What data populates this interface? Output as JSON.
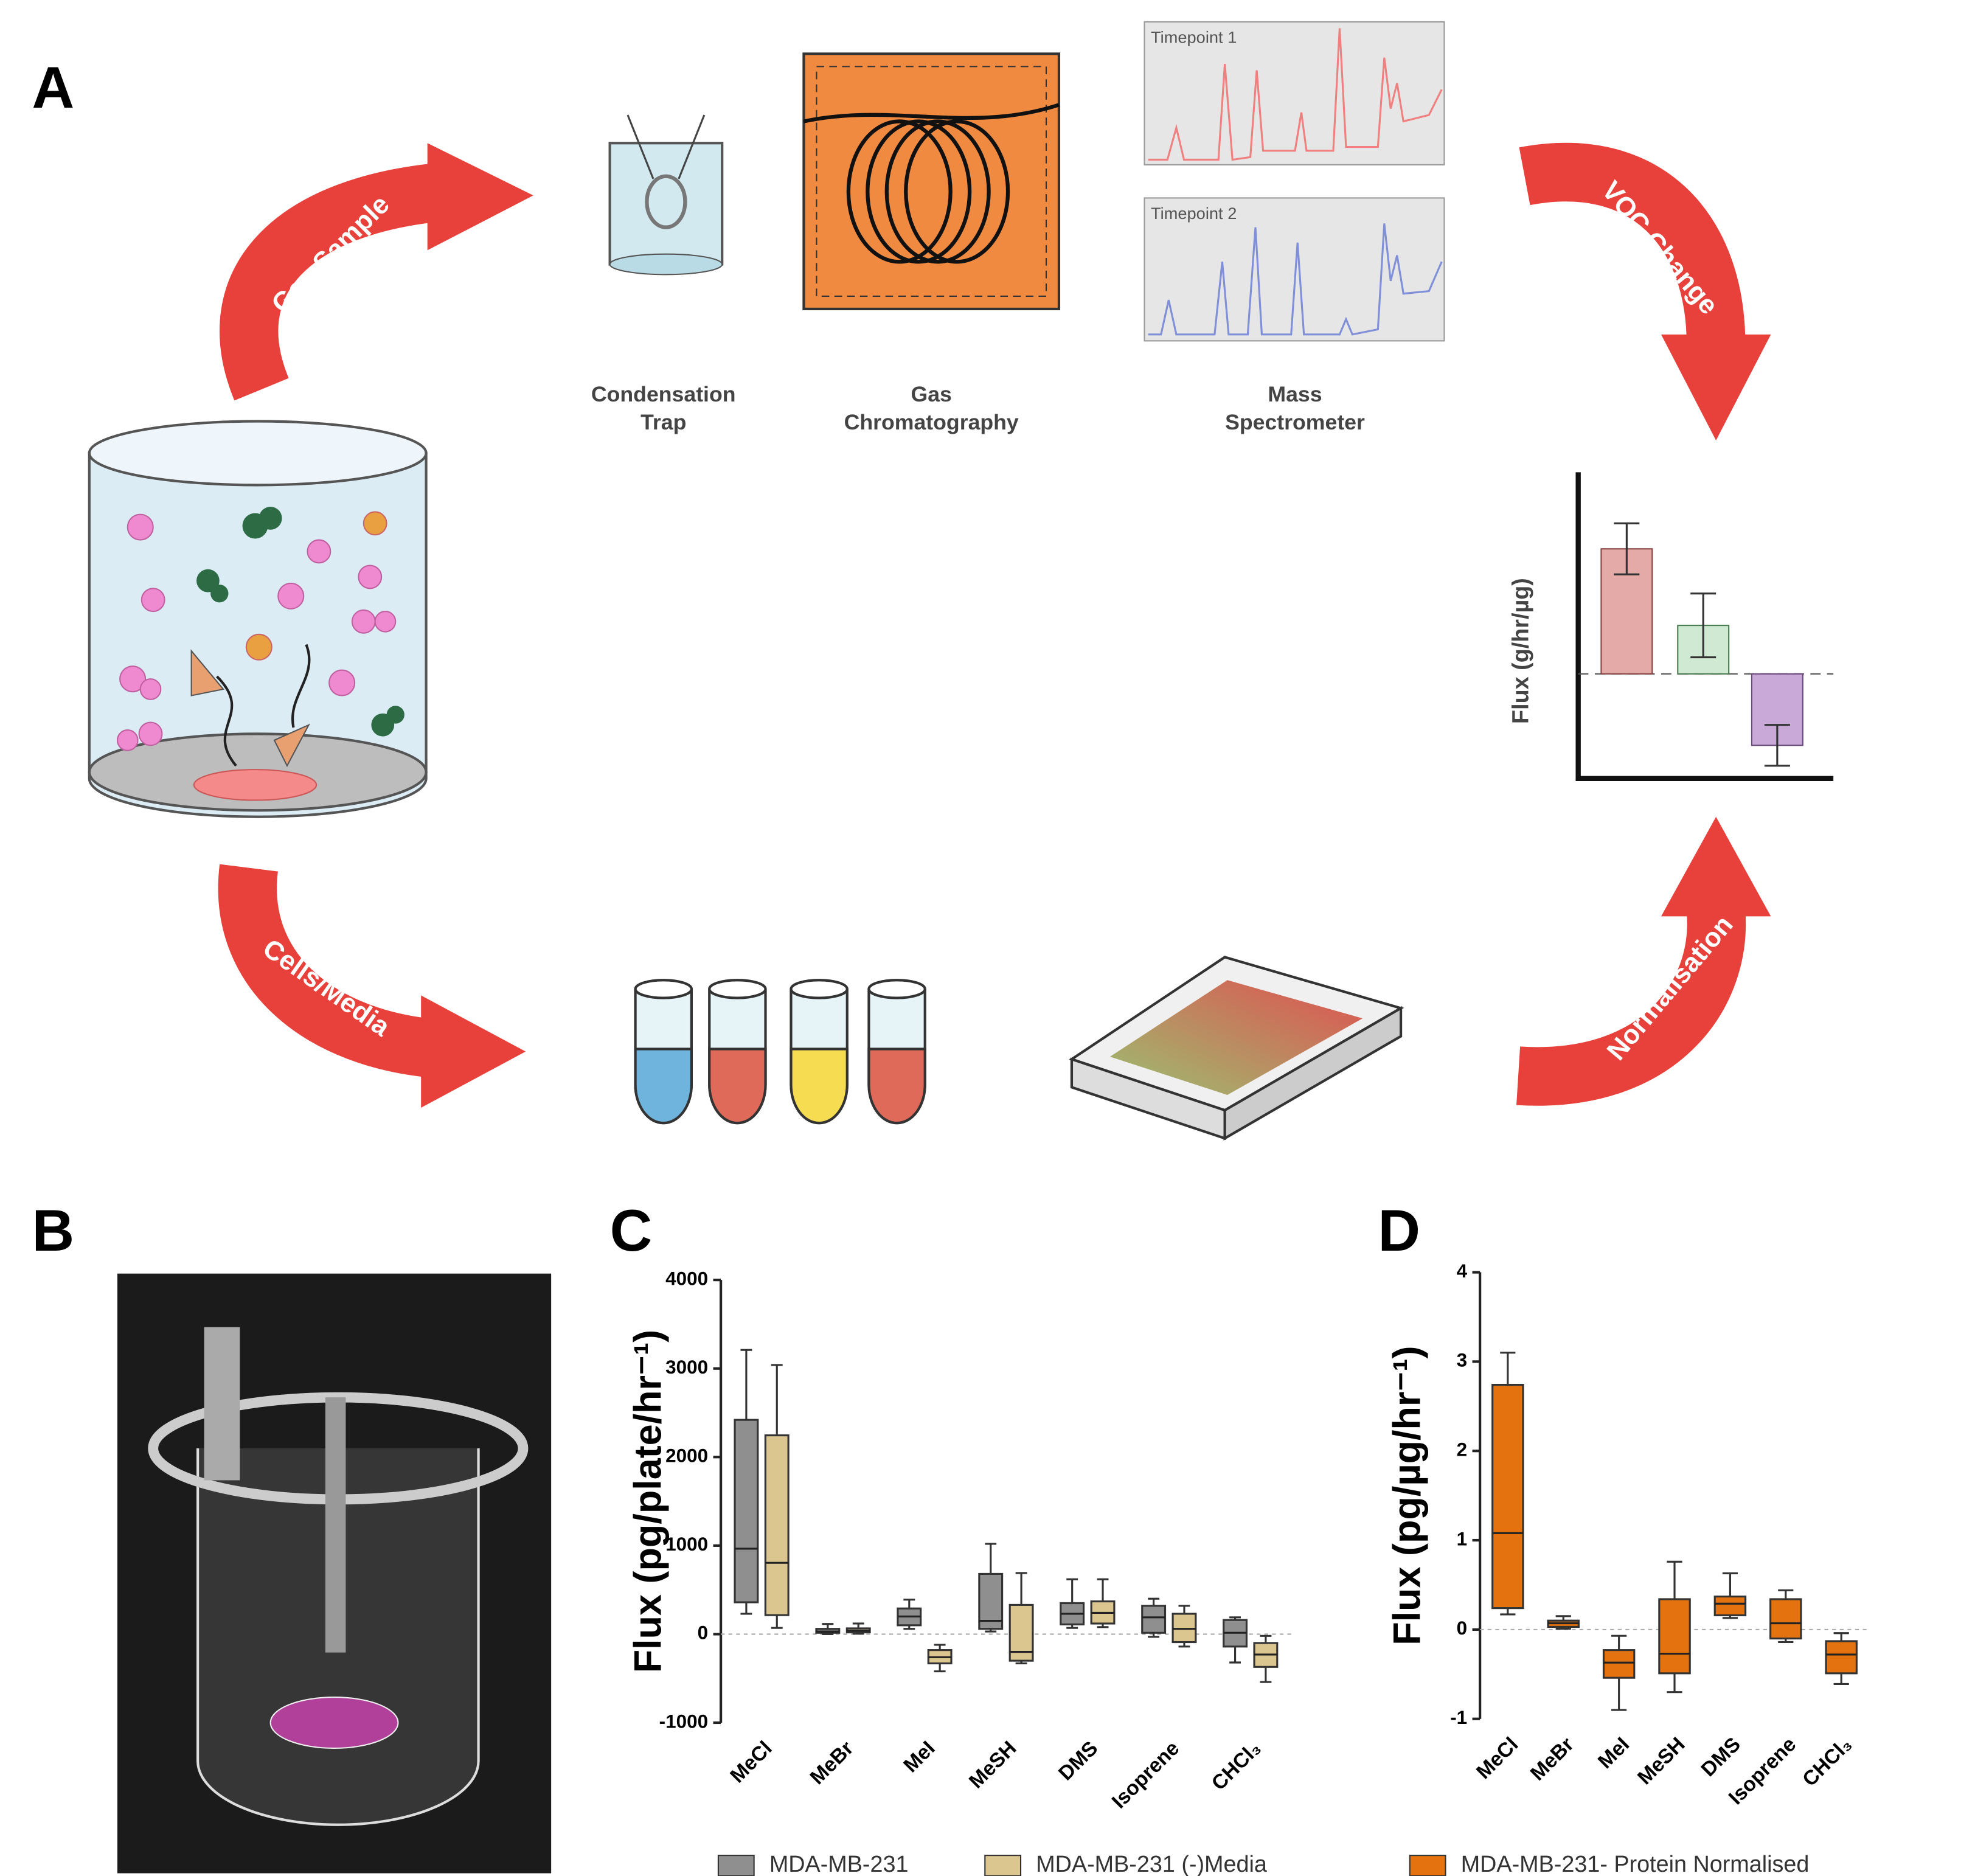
{
  "figure": {
    "panel_labels": [
      "A",
      "B",
      "C",
      "D"
    ],
    "arrows": [
      "Gas Sample",
      "VOC Change",
      "Cells/Media",
      "Normalisation"
    ],
    "instruments": [
      [
        "Condensation",
        "Trap"
      ],
      [
        "Gas",
        "Chromatography"
      ],
      [
        "Mass",
        "Spectrometer"
      ]
    ],
    "timepoints": [
      "Timepoint 1",
      "Timepoint 2"
    ],
    "schematic_ylabel": "Flux (g/hr/µg)"
  },
  "chart_data": [
    {
      "type": "box",
      "ylabel": "Flux (pg/plate/hr⁻¹)",
      "categories": [
        "MeCl",
        "MeBr",
        "MeI",
        "MeSH",
        "DMS",
        "Isoprene",
        "CHCl₃"
      ],
      "ylim": [
        -1000,
        4000
      ],
      "yticks": [
        -1000,
        0,
        1000,
        2000,
        3000,
        4000
      ],
      "series": [
        {
          "name": "MDA-MB-231",
          "color": "#8f8f8f",
          "values": [
            [
              230,
              360,
              965,
              2420,
              3210
            ],
            [
              0,
              15,
              30,
              60,
              115
            ],
            [
              60,
              100,
              200,
              290,
              390
            ],
            [
              30,
              60,
              150,
              680,
              1020
            ],
            [
              70,
              110,
              230,
              350,
              620
            ],
            [
              -30,
              15,
              190,
              320,
              400
            ],
            [
              -320,
              -140,
              15,
              160,
              190
            ]
          ]
        },
        {
          "name": "MDA-MB-231 (-)Media",
          "color": "#dcc68f",
          "values": [
            [
              70,
              215,
              805,
              2245,
              3040
            ],
            [
              5,
              20,
              40,
              65,
              120
            ],
            [
              -420,
              -330,
              -260,
              -180,
              -120
            ],
            [
              -330,
              -300,
              -200,
              330,
              690
            ],
            [
              80,
              120,
              240,
              370,
              620
            ],
            [
              -140,
              -90,
              60,
              230,
              320
            ],
            [
              -540,
              -370,
              -230,
              -100,
              -20
            ]
          ]
        }
      ]
    },
    {
      "type": "box",
      "ylabel": "Flux (pg/µg/hr⁻¹)",
      "categories": [
        "MeCl",
        "MeBr",
        "MeI",
        "MeSH",
        "DMS",
        "Isoprene",
        "CHCl₃"
      ],
      "ylim": [
        -1,
        4
      ],
      "yticks": [
        -1,
        0,
        1,
        2,
        3,
        4
      ],
      "series": [
        {
          "name": "MDA-MB-231- Protein Normalised",
          "color": "#e4730f",
          "values": [
            [
              0.17,
              0.24,
              1.08,
              2.74,
              3.1
            ],
            [
              0.01,
              0.03,
              0.07,
              0.1,
              0.15
            ],
            [
              -0.9,
              -0.54,
              -0.37,
              -0.23,
              -0.07
            ],
            [
              -0.7,
              -0.49,
              -0.27,
              0.34,
              0.76
            ],
            [
              0.13,
              0.16,
              0.29,
              0.37,
              0.63
            ],
            [
              -0.14,
              -0.1,
              0.07,
              0.34,
              0.44
            ],
            [
              -0.61,
              -0.49,
              -0.28,
              -0.13,
              -0.04
            ]
          ]
        }
      ]
    }
  ]
}
